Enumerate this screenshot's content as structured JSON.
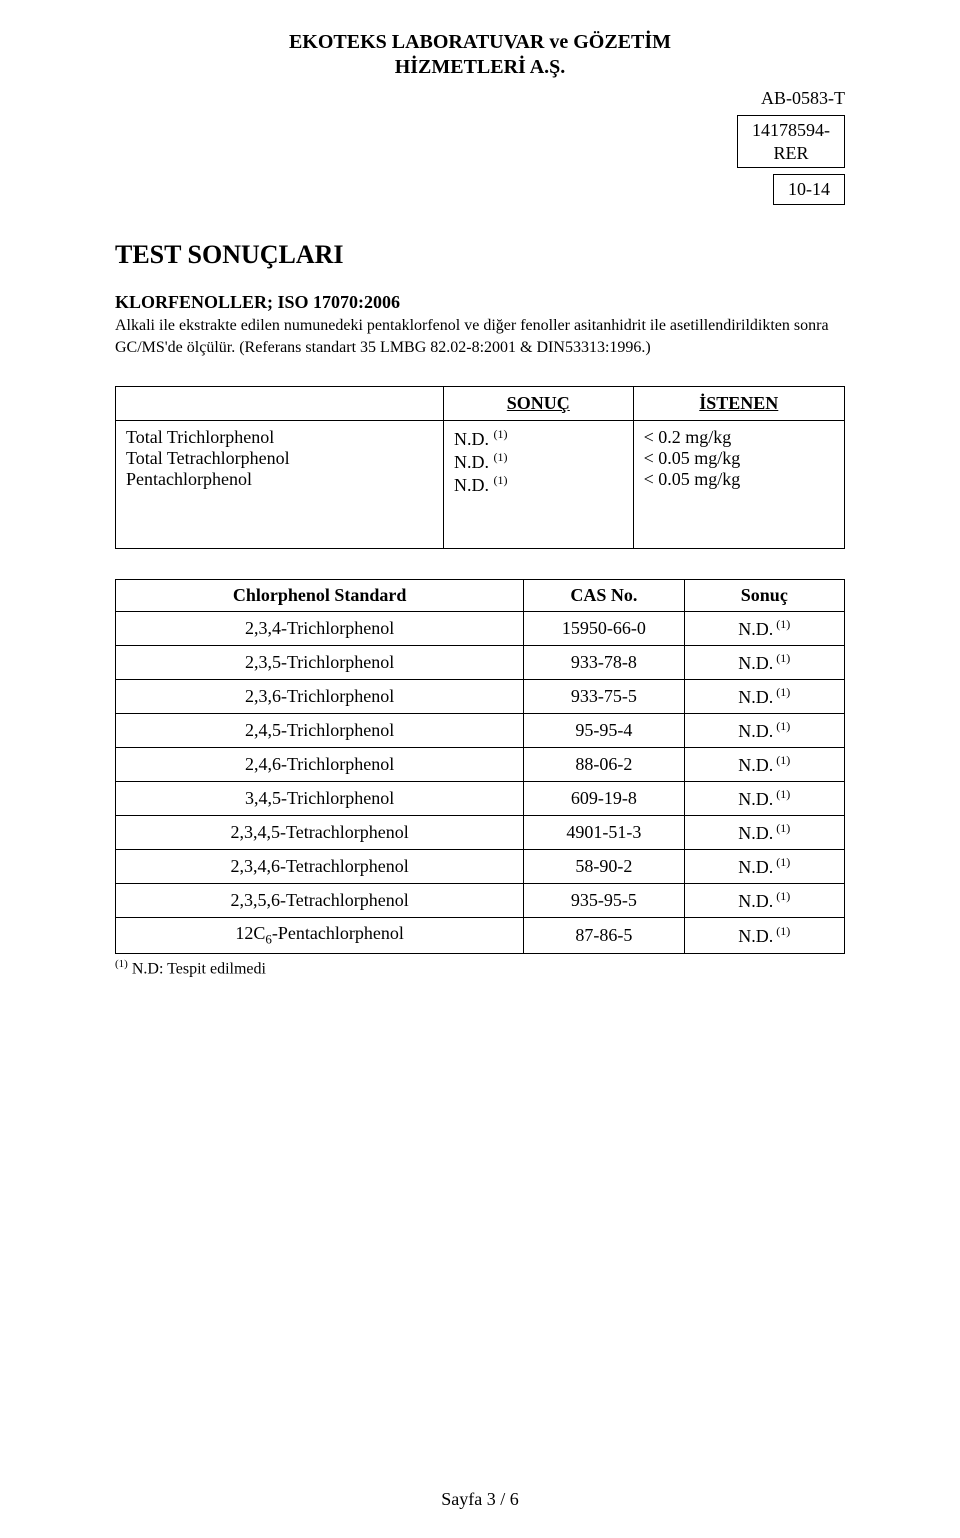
{
  "header": {
    "line1": "EKOTEKS LABORATUVAR ve GÖZETİM",
    "line2": "HİZMETLERİ A.Ş."
  },
  "top_right": {
    "ab_code": "AB-0583-T",
    "ref_line1": "14178594-",
    "ref_line2": "RER",
    "pages": "10-14"
  },
  "section_title": "TEST SONUÇLARI",
  "method": {
    "title": "KLORFENOLLER; ISO 17070:2006",
    "desc": "Alkali ile ekstrakte edilen numunedeki pentaklorfenol ve diğer fenoller asitanhidrit ile asetillendirildikten sonra GC/MS'de ölçülür. (Referans standart 35 LMBG 82.02-8:2001 & DIN53313:1996.)"
  },
  "results": {
    "header_sonuc": "SONUÇ",
    "header_istenen": "İSTENEN",
    "rows": [
      {
        "label": "Total Trichlorphenol",
        "value": "N.D.",
        "sup": "(1)",
        "req": "< 0.2 mg/kg"
      },
      {
        "label": "Total Tetrachlorphenol",
        "value": "N.D.",
        "sup": "(1)",
        "req": "< 0.05 mg/kg"
      },
      {
        "label": "Pentachlorphenol",
        "value": "N.D.",
        "sup": "(1)",
        "req": "< 0.05 mg/kg"
      }
    ]
  },
  "cas_table": {
    "h1": "Chlorphenol Standard",
    "h2": "CAS No.",
    "h3": "Sonuç",
    "rows": [
      {
        "name": "2,3,4-Trichlorphenol",
        "cas": "15950-66-0",
        "res": "N.D.",
        "sup": "(1)"
      },
      {
        "name": "2,3,5-Trichlorphenol",
        "cas": "933-78-8",
        "res": "N.D.",
        "sup": "(1)"
      },
      {
        "name": "2,3,6-Trichlorphenol",
        "cas": "933-75-5",
        "res": "N.D.",
        "sup": "(1)"
      },
      {
        "name": "2,4,5-Trichlorphenol",
        "cas": "95-95-4",
        "res": "N.D.",
        "sup": "(1)"
      },
      {
        "name": "2,4,6-Trichlorphenol",
        "cas": "88-06-2",
        "res": "N.D.",
        "sup": "(1)"
      },
      {
        "name": "3,4,5-Trichlorphenol",
        "cas": "609-19-8",
        "res": "N.D.",
        "sup": "(1)"
      },
      {
        "name": "2,3,4,5-Tetrachlorphenol",
        "cas": "4901-51-3",
        "res": "N.D.",
        "sup": "(1)"
      },
      {
        "name": "2,3,4,6-Tetrachlorphenol",
        "cas": "58-90-2",
        "res": "N.D.",
        "sup": "(1)"
      },
      {
        "name": "2,3,5,6-Tetrachlorphenol",
        "cas": "935-95-5",
        "res": "N.D.",
        "sup": "(1)"
      },
      {
        "name_pre": "12C",
        "name_sub": "6",
        "name_post": "-Pentachlorphenol",
        "cas": "87-86-5",
        "res": "N.D.",
        "sup": "(1)"
      }
    ]
  },
  "footnote": {
    "sup": "(1)",
    "text": " N.D: Tespit edilmedi"
  },
  "footer": "Sayfa 3 / 6"
}
